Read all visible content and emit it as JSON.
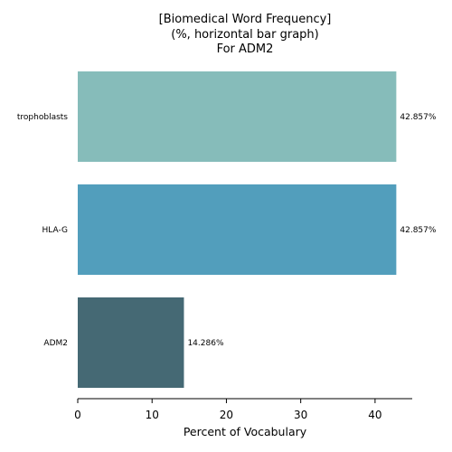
{
  "chart_data": {
    "type": "bar",
    "orientation": "horizontal",
    "title": [
      "[Biomedical Word Frequency]",
      "(%, horizontal bar graph)",
      "For ADM2"
    ],
    "xlabel": "Percent of Vocabulary",
    "ylabel": "",
    "categories": [
      "trophoblasts",
      "HLA-G",
      "ADM2"
    ],
    "values": [
      42.857,
      42.857,
      14.286
    ],
    "value_labels": [
      "42.857%",
      "42.857%",
      "14.286%"
    ],
    "colors": [
      "#86bcba",
      "#529ebc",
      "#456974"
    ],
    "xlim": [
      0,
      45
    ],
    "xticks": [
      0,
      10,
      20,
      30,
      40
    ],
    "grid": false,
    "legend": "none"
  }
}
